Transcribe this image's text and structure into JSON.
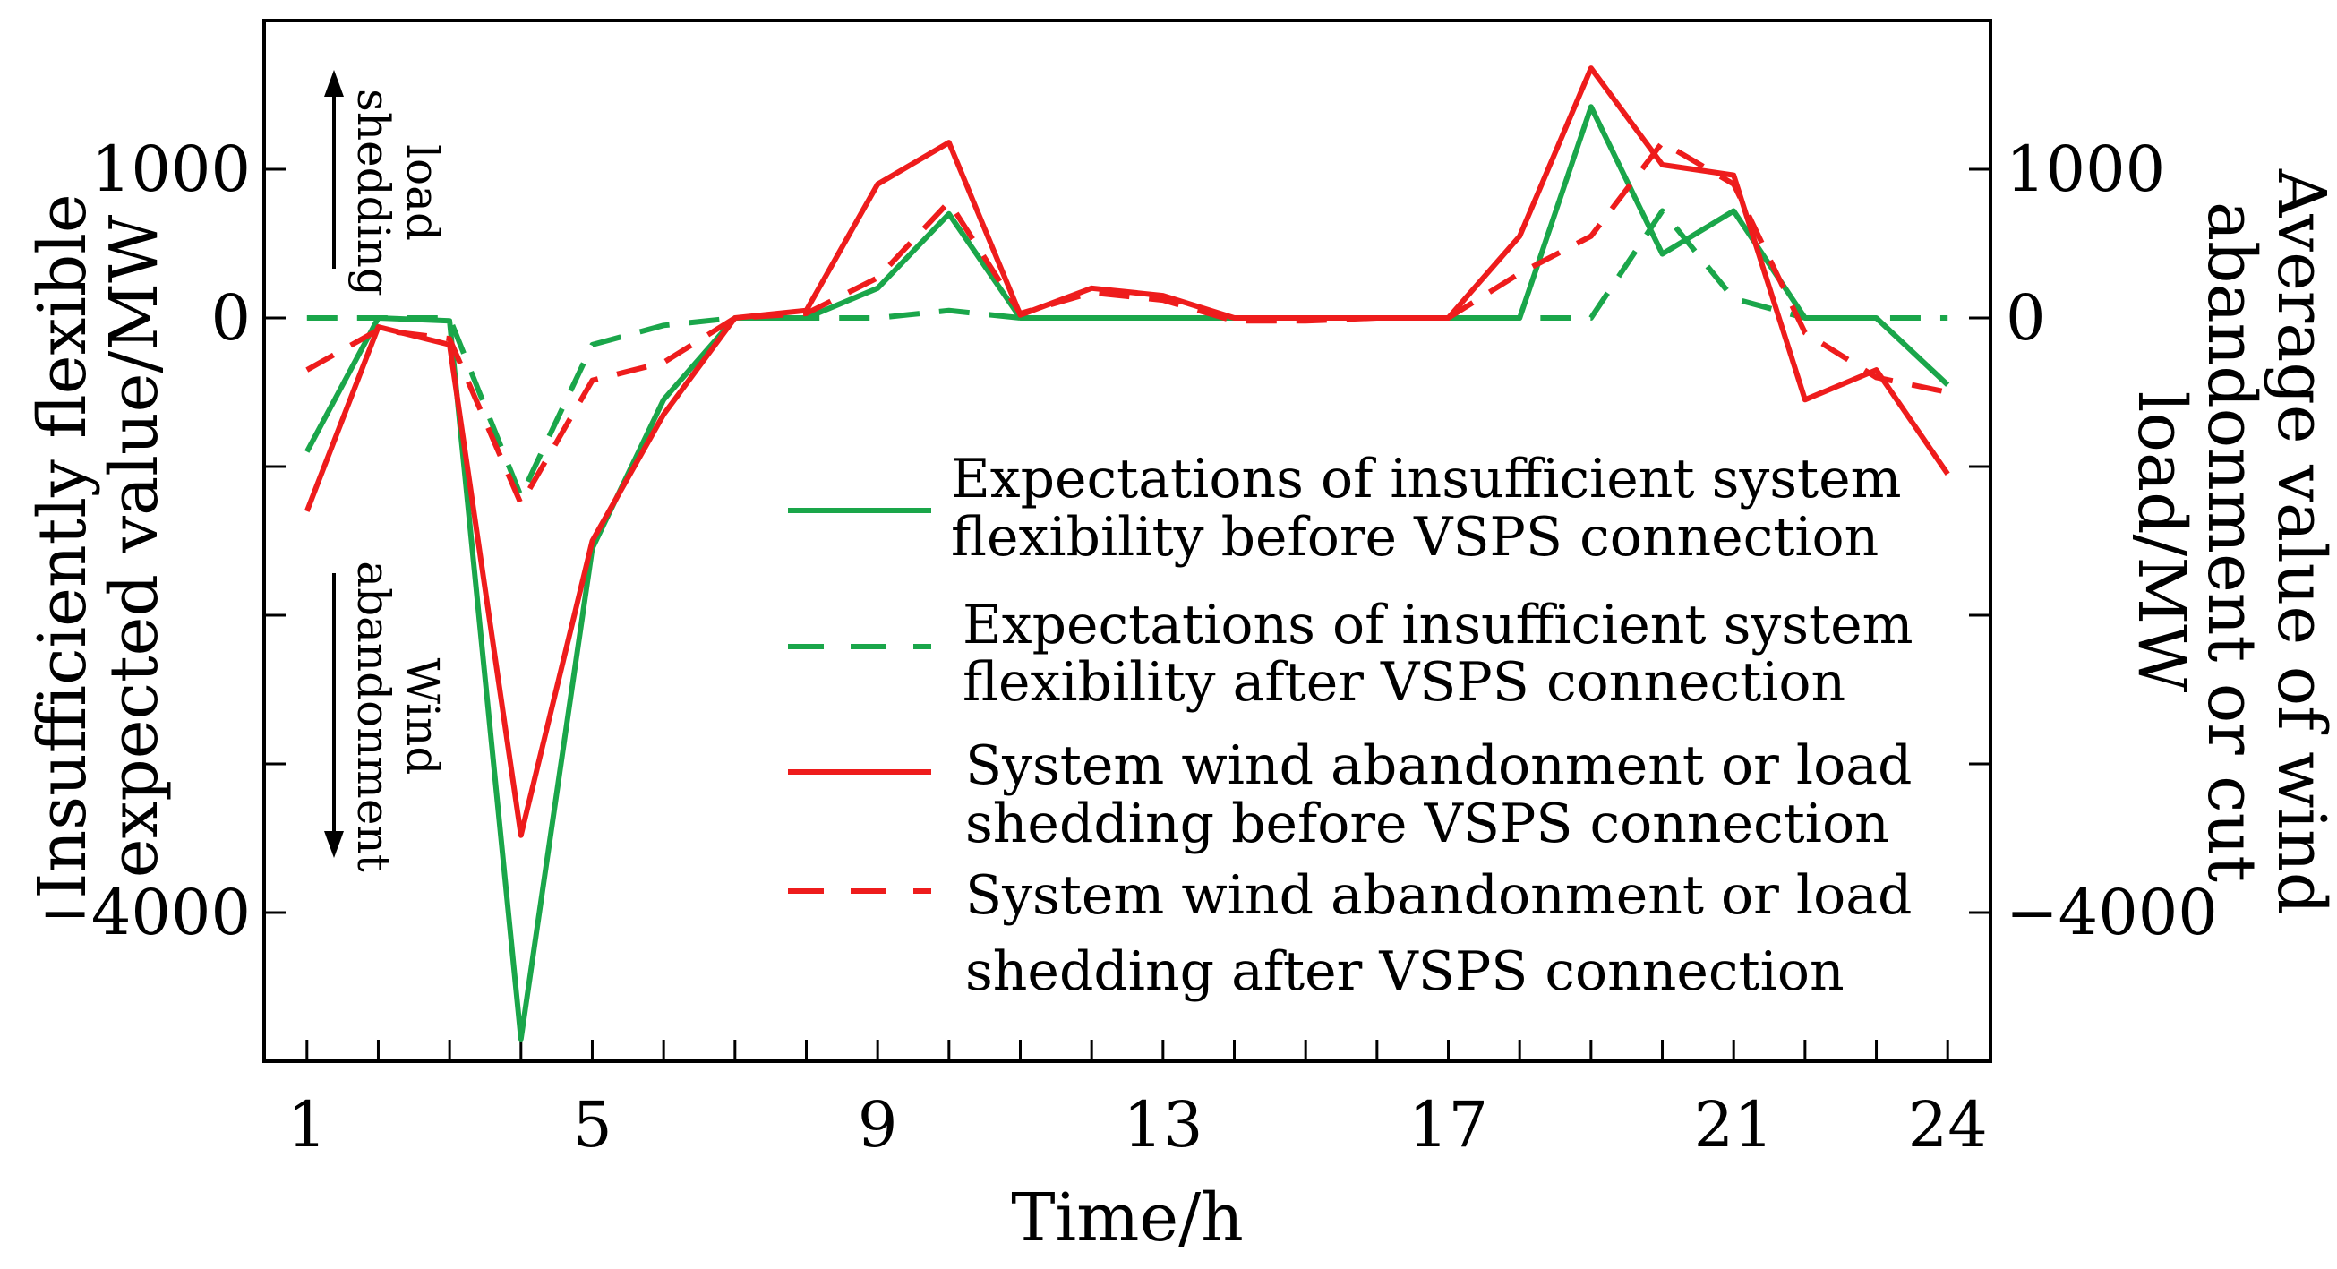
{
  "colors": {
    "green": "#1aa64a",
    "red": "#ee1c1c",
    "axis": "#000000"
  },
  "chart_data": {
    "type": "line",
    "xlabel": "Time/h",
    "ylabel_left": [
      "Insufficiently flexible",
      "expected value/MW"
    ],
    "ylabel_right": [
      "Average value of wind",
      "abandonment or cut",
      "load/MW"
    ],
    "x_ticks": [
      1,
      5,
      9,
      13,
      17,
      21,
      24
    ],
    "y_ticks": [
      {
        "value": 1000,
        "label": "1000"
      },
      {
        "value": 0,
        "label": "0"
      },
      {
        "value": -4000,
        "label": "−4000"
      }
    ],
    "xlim": [
      0.4,
      24.6
    ],
    "ylim": [
      -5000,
      2000
    ],
    "annotations": {
      "load_shedding": [
        "load",
        "shedding"
      ],
      "wind_abandonment": [
        "Wind",
        "abandonment"
      ]
    },
    "x": [
      1,
      2,
      3,
      4,
      5,
      6,
      7,
      8,
      9,
      10,
      11,
      12,
      13,
      14,
      15,
      16,
      17,
      18,
      19,
      20,
      21,
      22,
      23,
      24
    ],
    "series": [
      {
        "name": "Expectations of insufficient system flexibility before VSPS connection",
        "legend_lines": [
          "Expectations of insufficient system",
          "flexibility before VSPS connection"
        ],
        "color": "green",
        "dash": false,
        "values": [
          -900,
          0,
          -20,
          -4850,
          -1550,
          -550,
          0,
          0,
          200,
          700,
          0,
          0,
          0,
          0,
          0,
          0,
          0,
          0,
          1420,
          430,
          720,
          0,
          0,
          -450
        ]
      },
      {
        "name": "Expectations of insufficient system flexibility after VSPS connection",
        "legend_lines": [
          "Expectations of insufficient system",
          "flexibility after VSPS connection"
        ],
        "color": "green",
        "dash": true,
        "values": [
          0,
          0,
          0,
          -1200,
          -180,
          -50,
          0,
          0,
          0,
          50,
          0,
          0,
          0,
          0,
          0,
          0,
          0,
          0,
          0,
          720,
          130,
          0,
          0,
          0
        ]
      },
      {
        "name": "System wind abandonment or load shedding before VSPS connection",
        "legend_lines": [
          "System wind abandonment or load",
          "shedding before VSPS connection"
        ],
        "color": "red",
        "dash": false,
        "values": [
          -1300,
          -60,
          -180,
          -3480,
          -1500,
          -650,
          0,
          50,
          900,
          1180,
          20,
          200,
          150,
          0,
          0,
          0,
          0,
          550,
          1680,
          1030,
          960,
          -550,
          -350,
          -1050
        ]
      },
      {
        "name": "System wind abandonment or load shedding after VSPS connection",
        "legend_lines": [
          "System wind abandonment or load",
          "shedding after VSPS connection"
        ],
        "color": "red",
        "dash": true,
        "values": [
          -350,
          -80,
          -140,
          -1250,
          -420,
          -300,
          0,
          30,
          270,
          780,
          30,
          170,
          120,
          -20,
          -20,
          0,
          0,
          300,
          550,
          1180,
          900,
          -100,
          -400,
          -500
        ]
      }
    ]
  }
}
